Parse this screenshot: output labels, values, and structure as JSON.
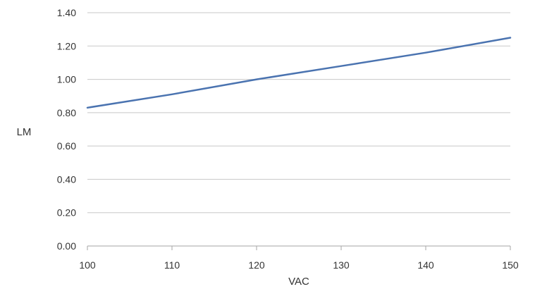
{
  "chart_data": {
    "type": "line",
    "xlabel": "VAC",
    "ylabel": "LM",
    "xlim": [
      100,
      150
    ],
    "ylim": [
      0,
      1.4
    ],
    "x_ticks": [
      "100",
      "110",
      "120",
      "130",
      "140",
      "150"
    ],
    "y_ticks": [
      "0.00",
      "0.20",
      "0.40",
      "0.60",
      "0.80",
      "1.00",
      "1.20",
      "1.40"
    ],
    "grid": "horizontal",
    "legend": "none",
    "series": [
      {
        "color": "#4a73b0",
        "x": [
          100,
          110,
          120,
          130,
          140,
          150
        ],
        "y": [
          0.83,
          0.91,
          1.0,
          1.08,
          1.16,
          1.25
        ]
      }
    ]
  }
}
